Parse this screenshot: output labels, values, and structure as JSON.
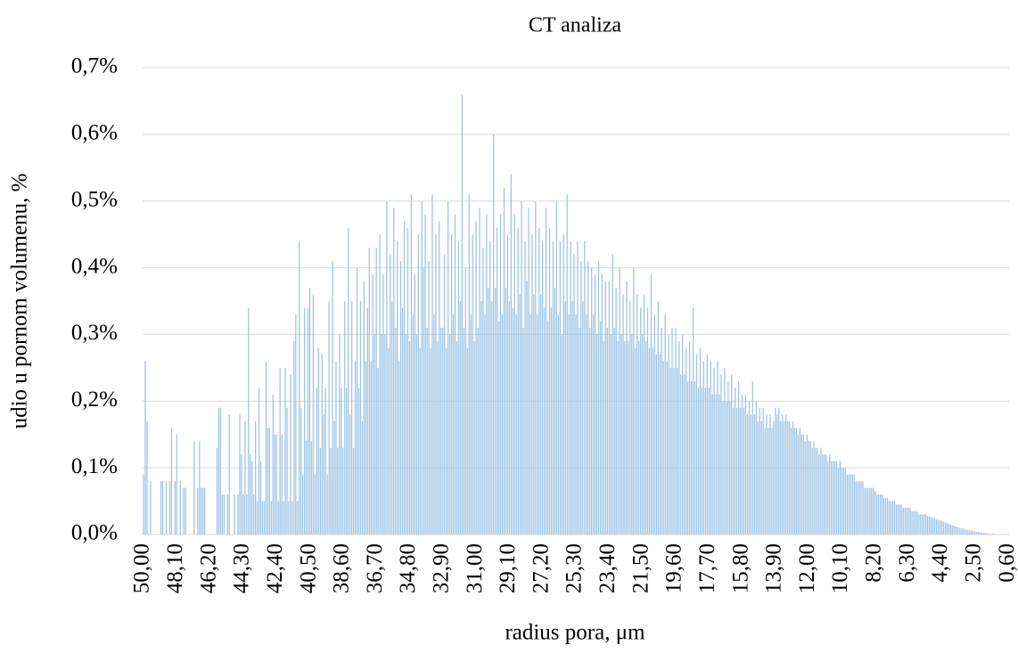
{
  "chart_data": {
    "type": "bar",
    "title": "CT analiza",
    "x_label": "radius pora, μm",
    "y_label": "udio u pornom volumenu, %",
    "color": "#9dc3e6",
    "grid": true,
    "ylim": [
      0,
      0.7
    ],
    "yticks": [
      {
        "value": 0,
        "label": "0,0%"
      },
      {
        "value": 0.1,
        "label": "0,1%"
      },
      {
        "value": 0.2,
        "label": "0,2%"
      },
      {
        "value": 0.3,
        "label": "0,3%"
      },
      {
        "value": 0.4,
        "label": "0,4%"
      },
      {
        "value": 0.5,
        "label": "0,5%"
      },
      {
        "value": 0.6,
        "label": "0,6%"
      },
      {
        "value": 0.7,
        "label": "0,7%"
      }
    ],
    "categories": [
      "50,00",
      null,
      null,
      null,
      null,
      null,
      null,
      null,
      null,
      null,
      null,
      null,
      null,
      null,
      null,
      null,
      null,
      null,
      null,
      "48,10",
      null,
      null,
      null,
      null,
      null,
      null,
      null,
      null,
      null,
      null,
      null,
      null,
      null,
      null,
      null,
      null,
      null,
      null,
      "46,20",
      null,
      null,
      null,
      null,
      null,
      null,
      null,
      null,
      null,
      null,
      null,
      null,
      null,
      null,
      null,
      null,
      null,
      null,
      "44,30",
      null,
      null,
      null,
      null,
      null,
      null,
      null,
      null,
      null,
      null,
      null,
      null,
      null,
      null,
      null,
      null,
      null,
      null,
      "42,40",
      null,
      null,
      null,
      null,
      null,
      null,
      null,
      null,
      null,
      null,
      null,
      null,
      null,
      null,
      null,
      null,
      null,
      null,
      "40,50",
      null,
      null,
      null,
      null,
      null,
      null,
      null,
      null,
      null,
      null,
      null,
      null,
      null,
      null,
      null,
      null,
      null,
      null,
      "38,60",
      null,
      null,
      null,
      null,
      null,
      null,
      null,
      null,
      null,
      null,
      null,
      null,
      null,
      null,
      null,
      null,
      null,
      null,
      "36,70",
      null,
      null,
      null,
      null,
      null,
      null,
      null,
      null,
      null,
      null,
      null,
      null,
      null,
      null,
      null,
      null,
      null,
      null,
      "34,80",
      null,
      null,
      null,
      null,
      null,
      null,
      null,
      null,
      null,
      null,
      null,
      null,
      null,
      null,
      null,
      null,
      null,
      null,
      "32,90",
      null,
      null,
      null,
      null,
      null,
      null,
      null,
      null,
      null,
      null,
      null,
      null,
      null,
      null,
      null,
      null,
      null,
      null,
      "31,00",
      null,
      null,
      null,
      null,
      null,
      null,
      null,
      null,
      null,
      null,
      null,
      null,
      null,
      null,
      null,
      null,
      null,
      null,
      "29,10",
      null,
      null,
      null,
      null,
      null,
      null,
      null,
      null,
      null,
      null,
      null,
      null,
      null,
      null,
      null,
      null,
      null,
      null,
      "27,20",
      null,
      null,
      null,
      null,
      null,
      null,
      null,
      null,
      null,
      null,
      null,
      null,
      null,
      null,
      null,
      null,
      null,
      null,
      "25,30",
      null,
      null,
      null,
      null,
      null,
      null,
      null,
      null,
      null,
      null,
      null,
      null,
      null,
      null,
      null,
      null,
      null,
      null,
      "23,40",
      null,
      null,
      null,
      null,
      null,
      null,
      null,
      null,
      null,
      null,
      null,
      null,
      null,
      null,
      null,
      null,
      null,
      null,
      "21,50",
      null,
      null,
      null,
      null,
      null,
      null,
      null,
      null,
      null,
      null,
      null,
      null,
      null,
      null,
      null,
      null,
      null,
      null,
      "19,60",
      null,
      null,
      null,
      null,
      null,
      null,
      null,
      null,
      null,
      null,
      null,
      null,
      null,
      null,
      null,
      null,
      null,
      null,
      "17,70",
      null,
      null,
      null,
      null,
      null,
      null,
      null,
      null,
      null,
      null,
      null,
      null,
      null,
      null,
      null,
      null,
      null,
      null,
      "15,80",
      null,
      null,
      null,
      null,
      null,
      null,
      null,
      null,
      null,
      null,
      null,
      null,
      null,
      null,
      null,
      null,
      null,
      null,
      "13,90",
      null,
      null,
      null,
      null,
      null,
      null,
      null,
      null,
      null,
      null,
      null,
      null,
      null,
      null,
      null,
      null,
      null,
      null,
      "12,00",
      null,
      null,
      null,
      null,
      null,
      null,
      null,
      null,
      null,
      null,
      null,
      null,
      null,
      null,
      null,
      null,
      null,
      null,
      "10,10",
      null,
      null,
      null,
      null,
      null,
      null,
      null,
      null,
      null,
      null,
      null,
      null,
      null,
      null,
      null,
      null,
      null,
      null,
      "8,20",
      null,
      null,
      null,
      null,
      null,
      null,
      null,
      null,
      null,
      null,
      null,
      null,
      null,
      null,
      null,
      null,
      null,
      null,
      "6,30",
      null,
      null,
      null,
      null,
      null,
      null,
      null,
      null,
      null,
      null,
      null,
      null,
      null,
      null,
      null,
      null,
      null,
      null,
      "4,40",
      null,
      null,
      null,
      null,
      null,
      null,
      null,
      null,
      null,
      null,
      null,
      null,
      null,
      null,
      null,
      null,
      null,
      null,
      "2,50",
      null,
      null,
      null,
      null,
      null,
      null,
      null,
      null,
      null,
      null,
      null,
      null,
      null,
      null,
      null,
      null,
      null,
      null,
      "0,60"
    ],
    "values": [
      0.09,
      0.26,
      0.17,
      0,
      0.08,
      0,
      0,
      0,
      0,
      0,
      0.08,
      0.08,
      0,
      0.08,
      0,
      0.08,
      0.16,
      0,
      0.08,
      0.15,
      0,
      0.08,
      0,
      0.07,
      0.07,
      0,
      0,
      0,
      0,
      0.14,
      0,
      0.07,
      0.14,
      0.07,
      0.07,
      0.07,
      0,
      0,
      0,
      0,
      0,
      0,
      0.13,
      0.19,
      0.19,
      0.06,
      0.06,
      0,
      0.06,
      0.18,
      0,
      0,
      0.06,
      0,
      0.06,
      0.18,
      0.12,
      0.06,
      0.17,
      0.06,
      0.34,
      0.12,
      0.11,
      0.06,
      0.17,
      0.05,
      0.22,
      0.11,
      0.05,
      0.05,
      0.26,
      0.16,
      0.16,
      0.05,
      0.21,
      0.15,
      0.15,
      0.05,
      0.25,
      0.15,
      0.05,
      0.25,
      0.19,
      0.05,
      0.24,
      0.05,
      0.29,
      0.33,
      0.05,
      0.44,
      0.19,
      0.09,
      0.34,
      0.14,
      0.34,
      0.37,
      0.14,
      0.36,
      0.09,
      0.22,
      0.28,
      0.13,
      0.27,
      0.18,
      0.22,
      0.09,
      0.35,
      0.13,
      0.41,
      0.17,
      0.26,
      0.13,
      0.3,
      0.22,
      0.13,
      0.35,
      0.22,
      0.46,
      0.18,
      0.35,
      0.13,
      0.26,
      0.4,
      0.22,
      0.35,
      0.17,
      0.38,
      0.26,
      0.34,
      0.43,
      0.26,
      0.39,
      0.3,
      0.43,
      0.25,
      0.45,
      0.3,
      0.39,
      0.3,
      0.5,
      0.28,
      0.42,
      0.35,
      0.49,
      0.31,
      0.44,
      0.26,
      0.41,
      0.34,
      0.47,
      0.3,
      0.46,
      0.29,
      0.51,
      0.33,
      0.39,
      0.3,
      0.45,
      0.28,
      0.5,
      0.4,
      0.48,
      0.31,
      0.41,
      0.28,
      0.51,
      0.33,
      0.45,
      0.29,
      0.47,
      0.31,
      0.31,
      0.42,
      0.28,
      0.5,
      0.3,
      0.45,
      0.33,
      0.48,
      0.29,
      0.44,
      0.35,
      0.66,
      0.31,
      0.4,
      0.28,
      0.51,
      0.33,
      0.45,
      0.29,
      0.47,
      0.31,
      0.49,
      0.35,
      0.43,
      0.33,
      0.48,
      0.37,
      0.44,
      0.35,
      0.6,
      0.37,
      0.46,
      0.32,
      0.48,
      0.33,
      0.52,
      0.37,
      0.45,
      0.35,
      0.54,
      0.34,
      0.48,
      0.33,
      0.46,
      0.36,
      0.5,
      0.31,
      0.44,
      0.38,
      0.49,
      0.33,
      0.45,
      0.36,
      0.5,
      0.33,
      0.46,
      0.36,
      0.44,
      0.34,
      0.49,
      0.32,
      0.46,
      0.34,
      0.44,
      0.37,
      0.5,
      0.33,
      0.44,
      0.3,
      0.45,
      0.35,
      0.51,
      0.33,
      0.44,
      0.35,
      0.42,
      0.33,
      0.44,
      0.31,
      0.41,
      0.35,
      0.44,
      0.33,
      0.41,
      0.31,
      0.4,
      0.33,
      0.39,
      0.3,
      0.41,
      0.32,
      0.39,
      0.29,
      0.38,
      0.31,
      0.38,
      0.3,
      0.42,
      0.31,
      0.37,
      0.29,
      0.4,
      0.3,
      0.36,
      0.29,
      0.38,
      0.29,
      0.35,
      0.3,
      0.4,
      0.28,
      0.36,
      0.29,
      0.34,
      0.3,
      0.36,
      0.29,
      0.34,
      0.28,
      0.39,
      0.28,
      0.33,
      0.27,
      0.35,
      0.27,
      0.31,
      0.26,
      0.33,
      0.26,
      0.3,
      0.25,
      0.31,
      0.25,
      0.31,
      0.25,
      0.29,
      0.24,
      0.3,
      0.24,
      0.28,
      0.23,
      0.29,
      0.23,
      0.34,
      0.23,
      0.27,
      0.22,
      0.28,
      0.22,
      0.26,
      0.22,
      0.27,
      0.22,
      0.26,
      0.21,
      0.25,
      0.21,
      0.26,
      0.21,
      0.24,
      0.2,
      0.25,
      0.2,
      0.23,
      0.2,
      0.24,
      0.19,
      0.22,
      0.19,
      0.23,
      0.19,
      0.21,
      0.19,
      0.21,
      0.18,
      0.2,
      0.18,
      0.23,
      0.18,
      0.2,
      0.17,
      0.19,
      0.17,
      0.19,
      0.16,
      0.18,
      0.16,
      0.18,
      0.16,
      0.17,
      0.19,
      0.18,
      0.19,
      0.17,
      0.18,
      0.17,
      0.18,
      0.17,
      0.17,
      0.16,
      0.17,
      0.16,
      0.16,
      0.15,
      0.16,
      0.15,
      0.15,
      0.14,
      0.15,
      0.14,
      0.14,
      0.13,
      0.14,
      0.13,
      0.13,
      0.12,
      0.13,
      0.12,
      0.12,
      0.12,
      0.11,
      0.12,
      0.11,
      0.11,
      0.11,
      0.11,
      0.1,
      0.11,
      0.1,
      0.1,
      0.1,
      0.09,
      0.09,
      0.09,
      0.09,
      0.09,
      0.08,
      0.08,
      0.08,
      0.08,
      0.08,
      0.07,
      0.07,
      0.07,
      0.07,
      0.07,
      0.07,
      0.065,
      0.06,
      0.06,
      0.06,
      0.06,
      0.055,
      0.055,
      0.055,
      0.05,
      0.05,
      0.05,
      0.05,
      0.045,
      0.045,
      0.045,
      0.045,
      0.04,
      0.04,
      0.04,
      0.04,
      0.04,
      0.035,
      0.035,
      0.035,
      0.035,
      0.03,
      0.03,
      0.03,
      0.03,
      0.03,
      0.028,
      0.027,
      0.026,
      0.025,
      0.024,
      0.023,
      0.022,
      0.021,
      0.02,
      0.019,
      0.018,
      0.017,
      0.016,
      0.015,
      0.014,
      0.013,
      0.012,
      0.011,
      0.01,
      0.009,
      0.009,
      0.008,
      0.007,
      0.007,
      0.006,
      0.006,
      0.005,
      0.005,
      0.004,
      0.004,
      0.003,
      0.003,
      0.002,
      0.002,
      0.002,
      0.001,
      0.001,
      0.001,
      0.001,
      0,
      0,
      0,
      0,
      0,
      0,
      0,
      0
    ]
  }
}
